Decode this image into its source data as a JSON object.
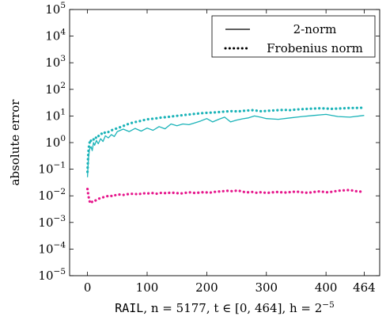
{
  "chart_data": {
    "type": "line",
    "ylabel": "absolute error",
    "xlabel": {
      "dataset": "RAIL",
      "n_text": ", n = 5177, ",
      "t_text": "t ∈ [0, 464], ",
      "h_text": "h = 2",
      "h_exp": "−5"
    },
    "x_ticks": [
      0,
      100,
      200,
      300,
      400,
      464
    ],
    "y_tick_base": "10",
    "y_ticks": [
      {
        "value": -5,
        "label": "−5"
      },
      {
        "value": -4,
        "label": "−4"
      },
      {
        "value": -3,
        "label": "−3"
      },
      {
        "value": -2,
        "label": "−2"
      },
      {
        "value": -1,
        "label": "−1"
      },
      {
        "value": 0,
        "label": "0"
      },
      {
        "value": 1,
        "label": "1"
      },
      {
        "value": 2,
        "label": "2"
      },
      {
        "value": 3,
        "label": "3"
      },
      {
        "value": 4,
        "label": "4"
      },
      {
        "value": 5,
        "label": "5"
      }
    ],
    "xlim": [
      -30,
      490
    ],
    "ylim": [
      1e-05,
      100000.0
    ],
    "y_scale": "log",
    "grid": false,
    "legend": {
      "placement": "top-right",
      "entries": [
        {
          "label": "2-norm",
          "style": "solid"
        },
        {
          "label": "Frobenius norm",
          "style": "dotted"
        }
      ]
    },
    "series": [
      {
        "color": "#1ab3b8",
        "style": "solid",
        "x": [
          0,
          1,
          2,
          3,
          4,
          6,
          8,
          10,
          12,
          15,
          18,
          22,
          26,
          30,
          35,
          40,
          45,
          50,
          60,
          70,
          80,
          90,
          100,
          110,
          120,
          130,
          140,
          150,
          160,
          170,
          180,
          190,
          200,
          210,
          220,
          230,
          240,
          250,
          260,
          270,
          280,
          290,
          300,
          320,
          340,
          360,
          380,
          400,
          420,
          440,
          464
        ],
        "y": [
          0.05,
          0.15,
          0.3,
          0.5,
          0.6,
          0.7,
          0.5,
          1.0,
          0.8,
          1.2,
          0.9,
          1.4,
          1.1,
          1.8,
          1.5,
          2.0,
          1.7,
          2.6,
          3.2,
          2.6,
          3.4,
          2.7,
          3.5,
          2.9,
          4.0,
          3.3,
          5.0,
          4.3,
          5.0,
          4.7,
          5.5,
          6.5,
          8.0,
          6.0,
          7.5,
          9.0,
          6.0,
          7.0,
          7.8,
          8.5,
          10.0,
          9.0,
          8.0,
          7.5,
          8.5,
          9.5,
          10.5,
          11.5,
          9.5,
          9.0,
          10.5
        ]
      },
      {
        "color": "#1ab3b8",
        "style": "dotted",
        "x": [
          0,
          1,
          2,
          3,
          4,
          5,
          6,
          8,
          10,
          12,
          14,
          16,
          18,
          20,
          23,
          26,
          30,
          34,
          38,
          42,
          46,
          50,
          55,
          60,
          66,
          72,
          78,
          85,
          92,
          100,
          108,
          116,
          124,
          132,
          140,
          148,
          156,
          164,
          172,
          180,
          188,
          196,
          204,
          212,
          220,
          228,
          236,
          244,
          252,
          260,
          268,
          276,
          284,
          292,
          300,
          310,
          320,
          330,
          340,
          350,
          360,
          370,
          380,
          390,
          400,
          410,
          420,
          430,
          440,
          450,
          464
        ],
        "y": [
          0.08,
          0.3,
          0.6,
          0.9,
          1.1,
          1.0,
          1.2,
          1.4,
          1.3,
          1.6,
          1.5,
          1.8,
          1.7,
          2.0,
          2.2,
          2.0,
          2.5,
          2.4,
          2.8,
          3.0,
          3.2,
          3.5,
          3.8,
          4.2,
          4.8,
          5.3,
          5.8,
          6.2,
          6.8,
          7.5,
          7.8,
          8.2,
          8.8,
          9.0,
          9.5,
          10.0,
          10.5,
          11.0,
          11.5,
          12.0,
          12.5,
          13.0,
          13.2,
          13.5,
          14.0,
          14.5,
          15.0,
          15.2,
          14.8,
          15.5,
          16.0,
          16.5,
          15.8,
          15.0,
          15.5,
          16.0,
          16.5,
          17.0,
          16.5,
          17.5,
          18.0,
          18.5,
          19.0,
          19.5,
          19.0,
          18.5,
          19.0,
          19.5,
          20.0,
          20.0,
          20.5
        ]
      },
      {
        "color": "#e6178c",
        "style": "dotted",
        "x": [
          0,
          1,
          2,
          3,
          4,
          5,
          6,
          8,
          10,
          12,
          14,
          16,
          19,
          22,
          26,
          30,
          34,
          38,
          42,
          46,
          50,
          55,
          60,
          66,
          72,
          78,
          85,
          92,
          100,
          108,
          116,
          124,
          132,
          140,
          148,
          156,
          164,
          172,
          180,
          188,
          196,
          204,
          212,
          220,
          228,
          236,
          244,
          252,
          260,
          268,
          276,
          284,
          292,
          300,
          310,
          320,
          330,
          340,
          350,
          360,
          370,
          380,
          390,
          400,
          410,
          420,
          430,
          440,
          450,
          464
        ],
        "y": [
          0.018,
          0.012,
          0.009,
          0.007,
          0.0058,
          0.0052,
          0.0055,
          0.006,
          0.0058,
          0.0063,
          0.0068,
          0.0072,
          0.0078,
          0.0082,
          0.0088,
          0.0092,
          0.0098,
          0.0102,
          0.0096,
          0.0105,
          0.011,
          0.0112,
          0.0108,
          0.0115,
          0.0118,
          0.012,
          0.0112,
          0.0125,
          0.0122,
          0.0128,
          0.012,
          0.013,
          0.0125,
          0.0132,
          0.0128,
          0.0122,
          0.013,
          0.0135,
          0.0128,
          0.0132,
          0.0138,
          0.013,
          0.014,
          0.0145,
          0.015,
          0.0155,
          0.0148,
          0.016,
          0.0142,
          0.0135,
          0.014,
          0.013,
          0.0138,
          0.0128,
          0.0135,
          0.014,
          0.0132,
          0.0138,
          0.0145,
          0.0135,
          0.013,
          0.014,
          0.0148,
          0.0135,
          0.0142,
          0.0155,
          0.016,
          0.0165,
          0.015,
          0.014
        ]
      }
    ]
  }
}
